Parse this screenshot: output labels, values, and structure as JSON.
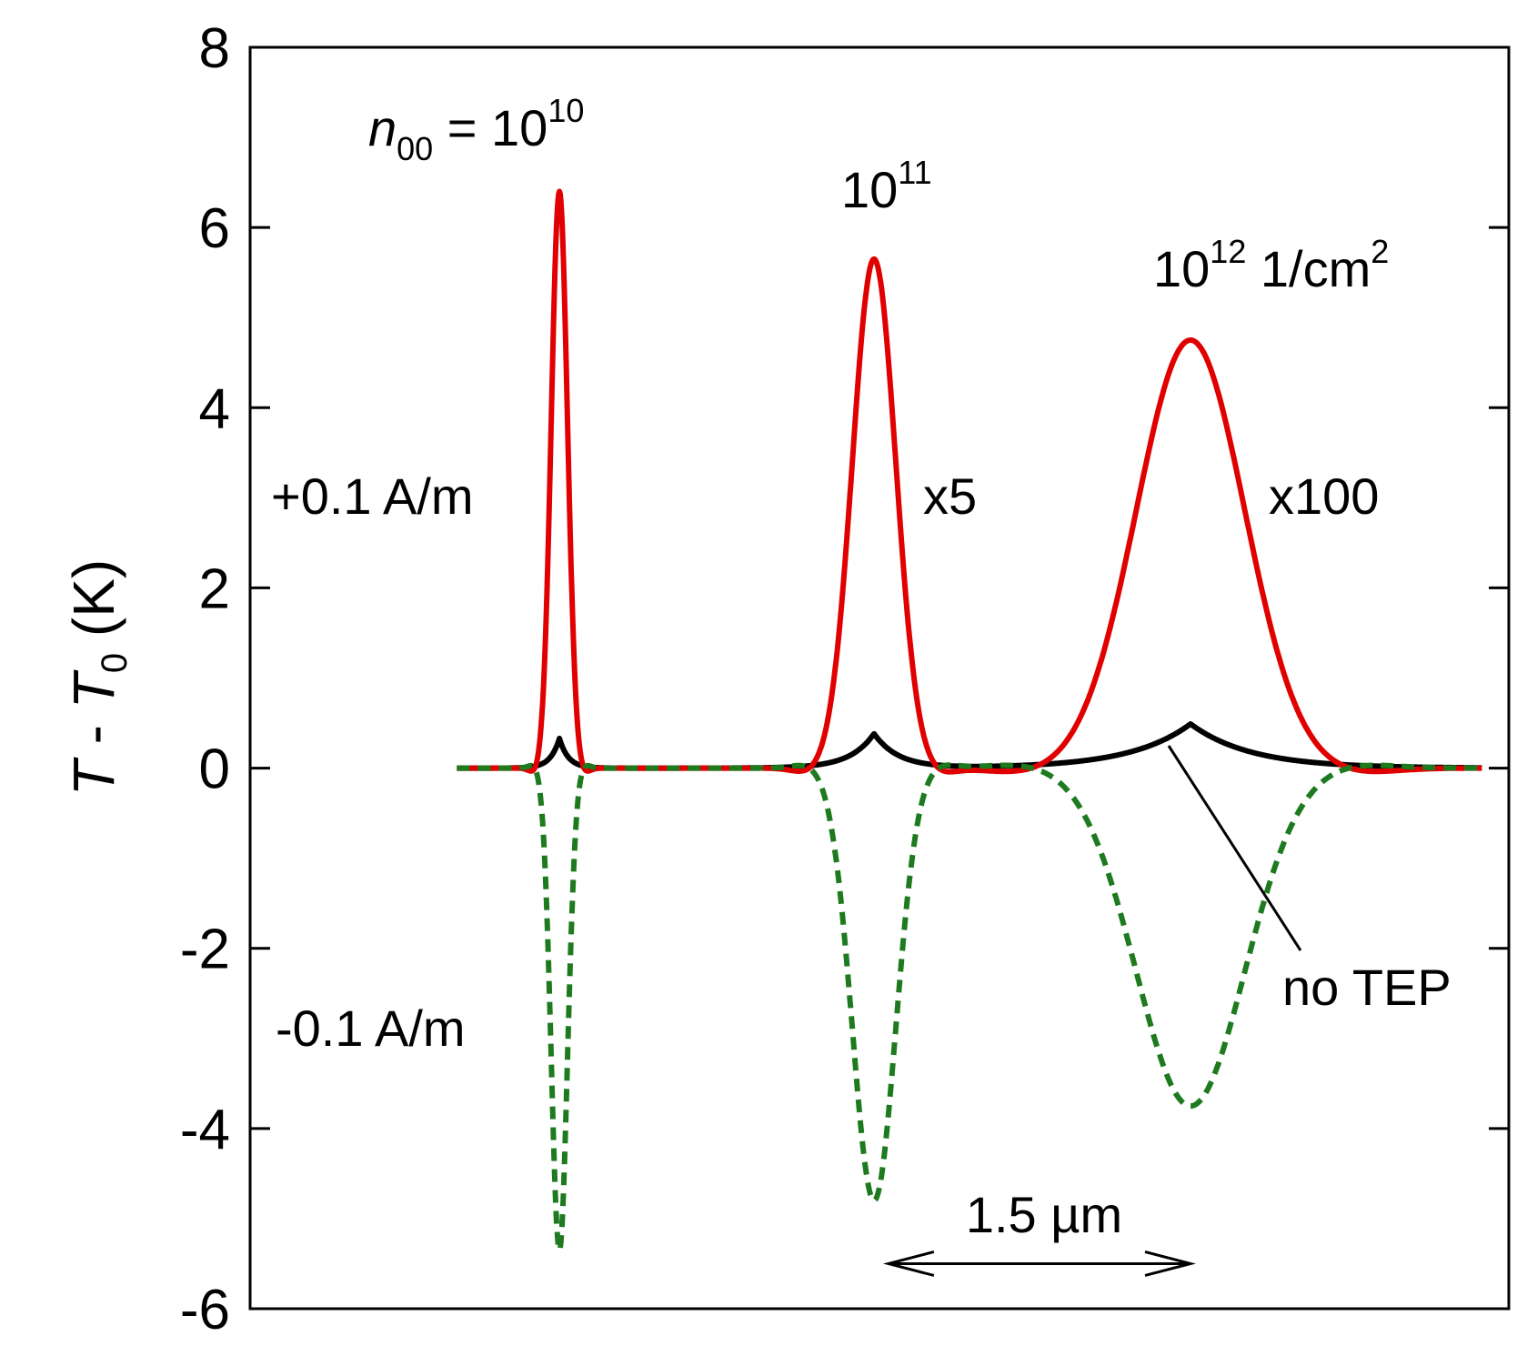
{
  "chart_data": {
    "type": "line",
    "title": "",
    "xlabel": "",
    "ylabel": {
      "main": "T",
      "sep": " - ",
      "sub_main": "T",
      "sub": "0",
      "unit": " (K)"
    },
    "ylim": [
      -6,
      8
    ],
    "xlim": [
      0,
      7.0
    ],
    "yticks": [
      "-6",
      "-4",
      "-2",
      "0",
      "2",
      "4",
      "6",
      "8"
    ],
    "yticks_values": [
      -6,
      -4,
      -2,
      0,
      2,
      4,
      6,
      8
    ],
    "grid": false,
    "colors": {
      "plus": "#e00000",
      "minus": "#1e7a1e",
      "none": "#000000"
    },
    "peaks": [
      {
        "center": 1.72,
        "width": 0.045,
        "plus": 6.4,
        "none": 0.33,
        "minus": -5.35
      },
      {
        "center": 3.47,
        "width": 0.12,
        "plus": 5.65,
        "none": 0.38,
        "minus": -4.8
      },
      {
        "center": 5.23,
        "width": 0.3,
        "plus": 4.75,
        "none": 0.49,
        "minus": -3.75
      }
    ],
    "series": [
      {
        "name": "+0.1 A/m",
        "key": "plus",
        "style": "solid"
      },
      {
        "name": "-0.1 A/m",
        "key": "minus",
        "style": "dashed"
      },
      {
        "name": "no TEP",
        "key": "none",
        "style": "solid"
      }
    ],
    "annotations": {
      "n00_label": {
        "n": "n",
        "sub": "00",
        "eq": " = 10",
        "sup": "10"
      },
      "peak2_label": {
        "base": "10",
        "sup": "11"
      },
      "peak3_label": {
        "base": "10",
        "sup": "12",
        "unit": " 1/cm",
        "unit_sup": "2"
      },
      "plus_label": "+0.1 A/m",
      "minus_label": "-0.1 A/m",
      "scale2": "x5",
      "scale3": "x100",
      "no_tep": "no TEP",
      "scalebar": "1.5 µm",
      "scalebar_from": 3.55,
      "scalebar_to": 5.23,
      "scalebar_y": -5.5
    }
  }
}
